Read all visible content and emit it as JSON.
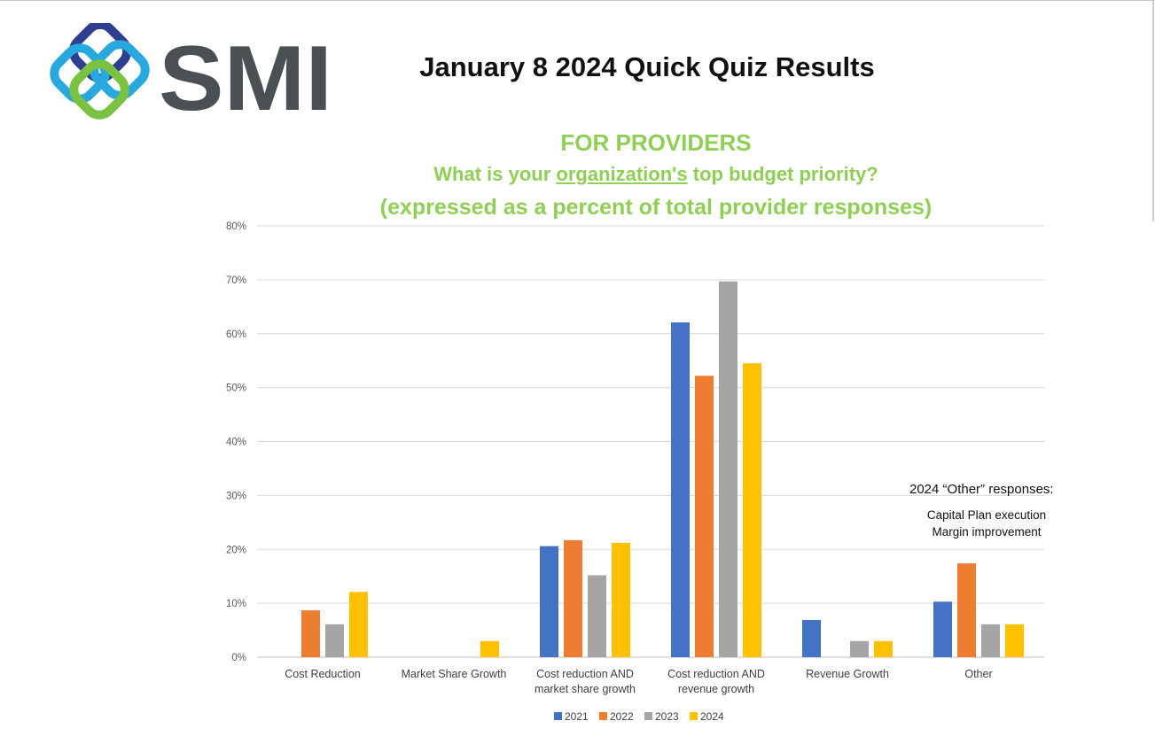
{
  "logo": {
    "text": "SMI"
  },
  "title": "January 8 2024 Quick Quiz Results",
  "subtitle": {
    "line1": "FOR PROVIDERS",
    "line2_before": "What is your ",
    "line2_underlined": "organization's",
    "line2_after": " top budget priority?",
    "line3": "(expressed as a percent of total provider responses)"
  },
  "note": {
    "heading": "2024 “Other” responses:",
    "lines": [
      "Capital Plan execution",
      "Margin improvement"
    ]
  },
  "colors": {
    "2021": "#4472c4",
    "2022": "#ed7d31",
    "2023": "#a5a5a5",
    "2024": "#ffc000",
    "accent": "#8fcf55"
  },
  "chart_data": {
    "type": "bar",
    "title": "",
    "xlabel": "",
    "ylabel": "",
    "ylim": [
      0,
      80
    ],
    "yticks": [
      "0%",
      "10%",
      "20%",
      "30%",
      "40%",
      "50%",
      "60%",
      "70%",
      "80%"
    ],
    "grid": true,
    "legend_position": "bottom",
    "categories": [
      [
        "Cost Reduction"
      ],
      [
        "Market Share Growth"
      ],
      [
        "Cost reduction AND",
        "market share growth"
      ],
      [
        "Cost reduction AND",
        "revenue growth"
      ],
      [
        "Revenue Growth"
      ],
      [
        "Other"
      ]
    ],
    "series": [
      {
        "name": "2021",
        "color": "#4472c4",
        "values": [
          0,
          0,
          20.6,
          62.1,
          6.9,
          10.3
        ]
      },
      {
        "name": "2022",
        "color": "#ed7d31",
        "values": [
          8.7,
          0,
          21.7,
          52.2,
          0,
          17.4
        ]
      },
      {
        "name": "2023",
        "color": "#a5a5a5",
        "values": [
          6.1,
          0,
          15.2,
          69.7,
          3.0,
          6.1
        ]
      },
      {
        "name": "2024",
        "color": "#ffc000",
        "values": [
          12.1,
          3.0,
          21.2,
          54.5,
          3.0,
          6.1
        ]
      }
    ]
  }
}
